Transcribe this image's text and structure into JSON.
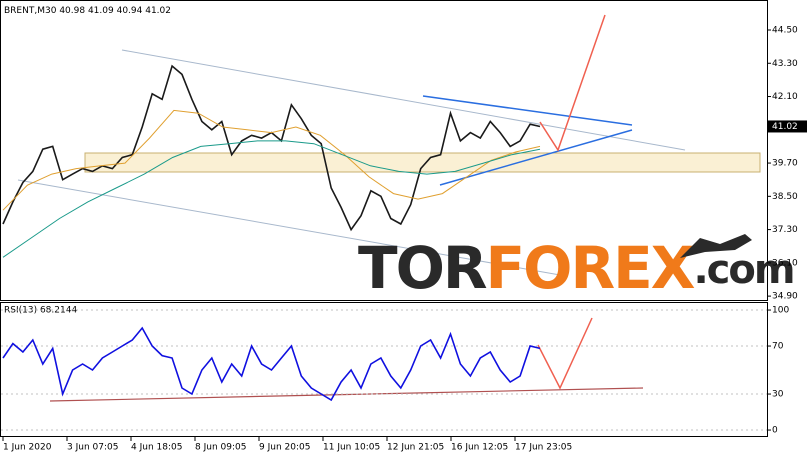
{
  "chart_data": [
    {
      "type": "line",
      "title": "BRENT,M30",
      "ohlc": [
        40.98,
        41.09,
        40.94,
        41.02
      ],
      "ylim": [
        34.76,
        45.51
      ],
      "yticks": [
        {
          "value": 44.5,
          "label": "44.50"
        },
        {
          "value": 43.3,
          "label": "43.30"
        },
        {
          "value": 42.1,
          "label": "42.10"
        },
        {
          "value": 39.7,
          "label": "39.70"
        },
        {
          "value": 38.5,
          "label": "38.50"
        },
        {
          "value": 37.3,
          "label": "37.30"
        },
        {
          "value": 36.1,
          "label": "36.10"
        },
        {
          "value": 34.9,
          "label": "34.90"
        }
      ],
      "series": [
        {
          "color": "#1a1a1a",
          "values": [
            37.5,
            38.3,
            39.0,
            39.4,
            40.2,
            40.3,
            39.1,
            39.3,
            39.5,
            39.4,
            39.6,
            39.5,
            39.9,
            40.0,
            41.0,
            42.2,
            42.0,
            43.2,
            42.9,
            42.0,
            41.2,
            40.9,
            41.2,
            40.0,
            40.5,
            40.7,
            40.6,
            40.8,
            40.5,
            41.8,
            41.3,
            40.7,
            40.4,
            38.8,
            38.1,
            37.3,
            37.8,
            38.7,
            38.5,
            37.7,
            37.5,
            38.2,
            39.5,
            39.9,
            40.0,
            41.5,
            40.5,
            40.8,
            40.6,
            41.2,
            40.8,
            40.3,
            40.5,
            41.1,
            41.02
          ]
        },
        {
          "color": "#e0a030",
          "values": [
            38.0,
            38.9,
            39.3,
            39.5,
            39.6,
            39.7,
            40.6,
            41.6,
            41.5,
            41.0,
            40.9,
            40.8,
            41.0,
            40.7,
            40.0,
            39.2,
            38.6,
            38.4,
            38.6,
            39.2,
            39.8,
            40.1,
            40.3
          ]
        },
        {
          "color": "#1a9a8a",
          "values": [
            36.3,
            37.0,
            37.7,
            38.3,
            38.8,
            39.3,
            39.9,
            40.3,
            40.4,
            40.5,
            40.5,
            40.4,
            40.0,
            39.6,
            39.4,
            39.3,
            39.4,
            39.7,
            40.0,
            40.2
          ]
        }
      ],
      "watermark": [
        "TOR",
        "FOREX",
        ".com"
      ]
    },
    {
      "type": "line",
      "title": "RSI(13) 68.2144",
      "ylim": [
        -5.8,
        106.7
      ],
      "yticks": [
        100,
        70,
        30,
        0
      ],
      "series": [
        {
          "color": "#1010e0",
          "values": [
            60,
            72,
            65,
            75,
            55,
            68,
            30,
            50,
            55,
            50,
            60,
            65,
            70,
            75,
            85,
            70,
            62,
            60,
            35,
            30,
            50,
            60,
            40,
            55,
            45,
            70,
            55,
            50,
            60,
            70,
            45,
            35,
            30,
            25,
            40,
            50,
            35,
            55,
            60,
            45,
            35,
            50,
            70,
            75,
            60,
            80,
            55,
            45,
            60,
            65,
            50,
            40,
            45,
            70,
            68
          ]
        }
      ],
      "x_labels": [
        "1 Jun 2020",
        "3 Jun 07:05",
        "4 Jun 18:05",
        "8 Jun 09:05",
        "9 Jun 20:05",
        "11 Jun 10:05",
        "12 Jun 21:05",
        "16 Jun 12:05",
        "17 Jun 23:05"
      ]
    }
  ]
}
